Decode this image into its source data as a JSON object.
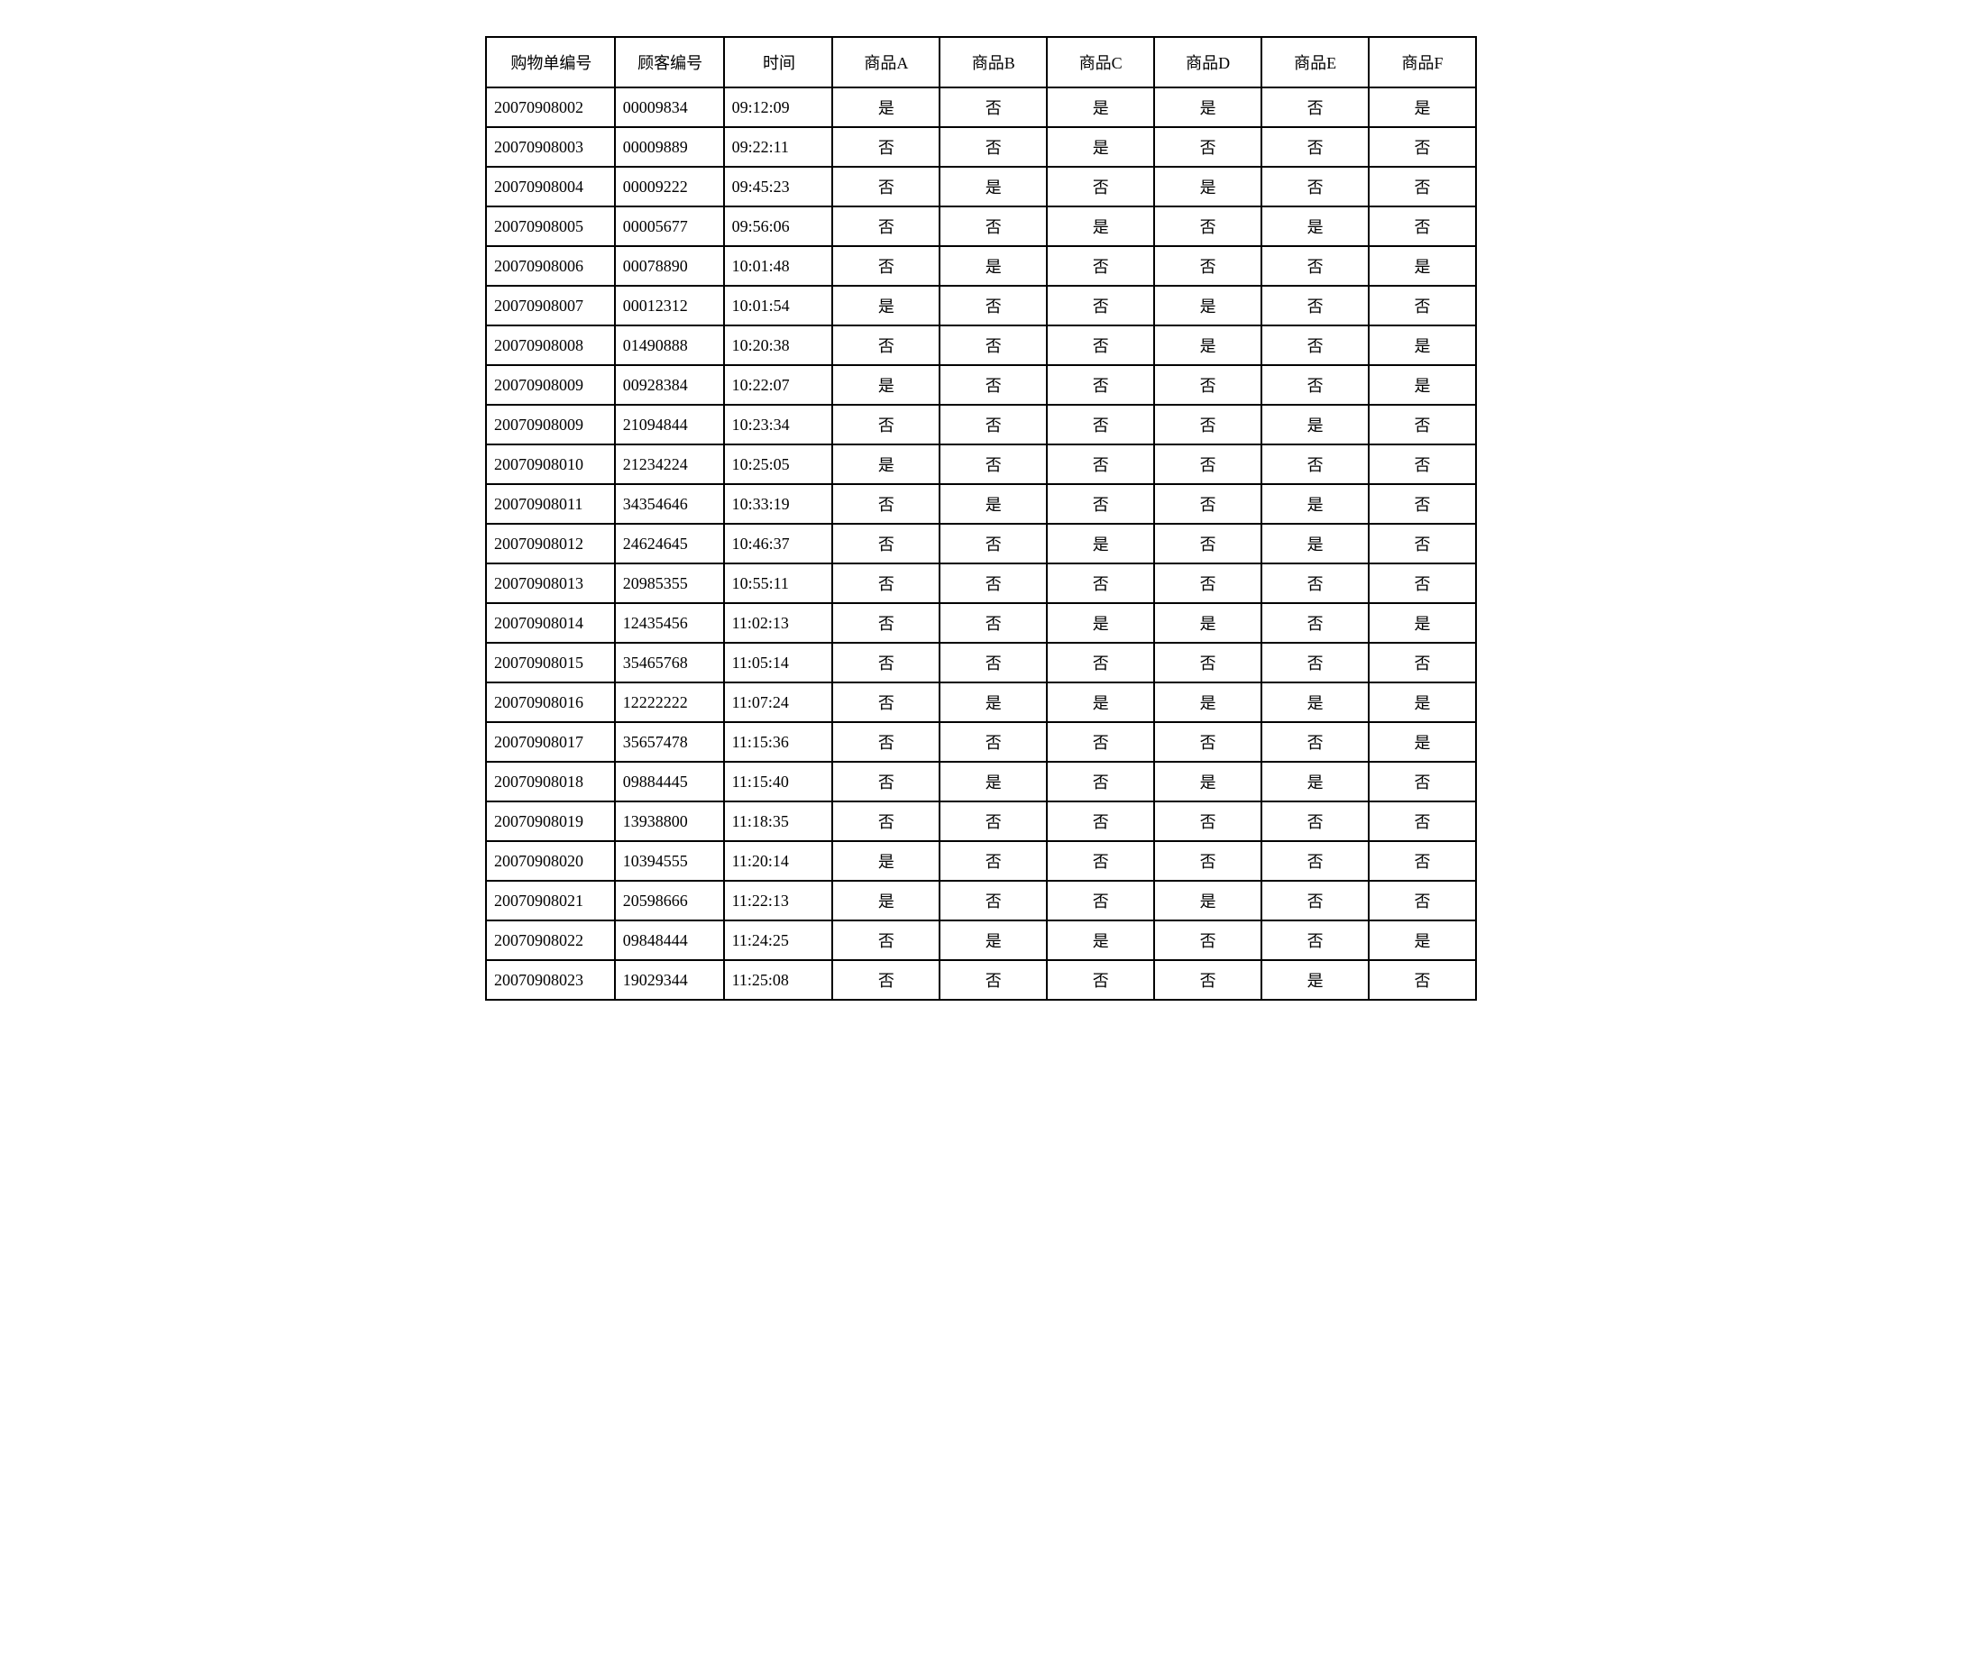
{
  "table": {
    "columns": [
      "购物单编号",
      "顾客编号",
      "时间",
      "商品A",
      "商品B",
      "商品C",
      "商品D",
      "商品E",
      "商品F"
    ],
    "column_classes": [
      "col-id",
      "col-cust",
      "col-time",
      "col-prod",
      "col-prod",
      "col-prod",
      "col-prod",
      "col-prod",
      "col-prod"
    ],
    "rows": [
      [
        "20070908002",
        "00009834",
        "09:12:09",
        "是",
        "否",
        "是",
        "是",
        "否",
        "是"
      ],
      [
        "20070908003",
        "00009889",
        "09:22:11",
        "否",
        "否",
        "是",
        "否",
        "否",
        "否"
      ],
      [
        "20070908004",
        "00009222",
        "09:45:23",
        "否",
        "是",
        "否",
        "是",
        "否",
        "否"
      ],
      [
        "20070908005",
        "00005677",
        "09:56:06",
        "否",
        "否",
        "是",
        "否",
        "是",
        "否"
      ],
      [
        "20070908006",
        "00078890",
        "10:01:48",
        "否",
        "是",
        "否",
        "否",
        "否",
        "是"
      ],
      [
        "20070908007",
        "00012312",
        "10:01:54",
        "是",
        "否",
        "否",
        "是",
        "否",
        "否"
      ],
      [
        "20070908008",
        "01490888",
        "10:20:38",
        "否",
        "否",
        "否",
        "是",
        "否",
        "是"
      ],
      [
        "20070908009",
        "00928384",
        "10:22:07",
        "是",
        "否",
        "否",
        "否",
        "否",
        "是"
      ],
      [
        "20070908009",
        "21094844",
        "10:23:34",
        "否",
        "否",
        "否",
        "否",
        "是",
        "否"
      ],
      [
        "20070908010",
        "21234224",
        "10:25:05",
        "是",
        "否",
        "否",
        "否",
        "否",
        "否"
      ],
      [
        "20070908011",
        "34354646",
        "10:33:19",
        "否",
        "是",
        "否",
        "否",
        "是",
        "否"
      ],
      [
        "20070908012",
        "24624645",
        "10:46:37",
        "否",
        "否",
        "是",
        "否",
        "是",
        "否"
      ],
      [
        "20070908013",
        "20985355",
        "10:55:11",
        "否",
        "否",
        "否",
        "否",
        "否",
        "否"
      ],
      [
        "20070908014",
        "12435456",
        "11:02:13",
        "否",
        "否",
        "是",
        "是",
        "否",
        "是"
      ],
      [
        "20070908015",
        "35465768",
        "11:05:14",
        "否",
        "否",
        "否",
        "否",
        "否",
        "否"
      ],
      [
        "20070908016",
        "12222222",
        "11:07:24",
        "否",
        "是",
        "是",
        "是",
        "是",
        "是"
      ],
      [
        "20070908017",
        "35657478",
        "11:15:36",
        "否",
        "否",
        "否",
        "否",
        "否",
        "是"
      ],
      [
        "20070908018",
        "09884445",
        "11:15:40",
        "否",
        "是",
        "否",
        "是",
        "是",
        "否"
      ],
      [
        "20070908019",
        "13938800",
        "11:18:35",
        "否",
        "否",
        "否",
        "否",
        "否",
        "否"
      ],
      [
        "20070908020",
        "10394555",
        "11:20:14",
        "是",
        "否",
        "否",
        "否",
        "否",
        "否"
      ],
      [
        "20070908021",
        "20598666",
        "11:22:13",
        "是",
        "否",
        "否",
        "是",
        "否",
        "否"
      ],
      [
        "20070908022",
        "09848444",
        "11:24:25",
        "否",
        "是",
        "是",
        "否",
        "否",
        "是"
      ],
      [
        "20070908023",
        "19029344",
        "11:25:08",
        "否",
        "否",
        "否",
        "否",
        "是",
        "否"
      ]
    ],
    "border_color": "#000000",
    "background_color": "#ffffff",
    "text_color": "#000000",
    "font_family": "SimSun",
    "header_fontsize": 18,
    "cell_fontsize": 18,
    "border_width": 2
  }
}
